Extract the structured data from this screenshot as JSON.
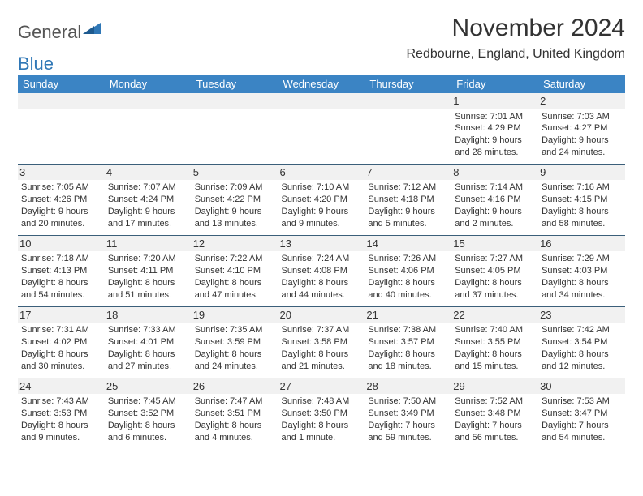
{
  "logo": {
    "part1": "General",
    "part2": "Blue"
  },
  "title": "November 2024",
  "location": "Redbourne, England, United Kingdom",
  "headerBg": "#3b84c4",
  "borderColor": "#3b5f7a",
  "dayNames": [
    "Sunday",
    "Monday",
    "Tuesday",
    "Wednesday",
    "Thursday",
    "Friday",
    "Saturday"
  ],
  "weeks": [
    [
      null,
      null,
      null,
      null,
      null,
      {
        "n": "1",
        "sunrise": "7:01 AM",
        "sunset": "4:29 PM",
        "daylight": "9 hours and 28 minutes."
      },
      {
        "n": "2",
        "sunrise": "7:03 AM",
        "sunset": "4:27 PM",
        "daylight": "9 hours and 24 minutes."
      }
    ],
    [
      {
        "n": "3",
        "sunrise": "7:05 AM",
        "sunset": "4:26 PM",
        "daylight": "9 hours and 20 minutes."
      },
      {
        "n": "4",
        "sunrise": "7:07 AM",
        "sunset": "4:24 PM",
        "daylight": "9 hours and 17 minutes."
      },
      {
        "n": "5",
        "sunrise": "7:09 AM",
        "sunset": "4:22 PM",
        "daylight": "9 hours and 13 minutes."
      },
      {
        "n": "6",
        "sunrise": "7:10 AM",
        "sunset": "4:20 PM",
        "daylight": "9 hours and 9 minutes."
      },
      {
        "n": "7",
        "sunrise": "7:12 AM",
        "sunset": "4:18 PM",
        "daylight": "9 hours and 5 minutes."
      },
      {
        "n": "8",
        "sunrise": "7:14 AM",
        "sunset": "4:16 PM",
        "daylight": "9 hours and 2 minutes."
      },
      {
        "n": "9",
        "sunrise": "7:16 AM",
        "sunset": "4:15 PM",
        "daylight": "8 hours and 58 minutes."
      }
    ],
    [
      {
        "n": "10",
        "sunrise": "7:18 AM",
        "sunset": "4:13 PM",
        "daylight": "8 hours and 54 minutes."
      },
      {
        "n": "11",
        "sunrise": "7:20 AM",
        "sunset": "4:11 PM",
        "daylight": "8 hours and 51 minutes."
      },
      {
        "n": "12",
        "sunrise": "7:22 AM",
        "sunset": "4:10 PM",
        "daylight": "8 hours and 47 minutes."
      },
      {
        "n": "13",
        "sunrise": "7:24 AM",
        "sunset": "4:08 PM",
        "daylight": "8 hours and 44 minutes."
      },
      {
        "n": "14",
        "sunrise": "7:26 AM",
        "sunset": "4:06 PM",
        "daylight": "8 hours and 40 minutes."
      },
      {
        "n": "15",
        "sunrise": "7:27 AM",
        "sunset": "4:05 PM",
        "daylight": "8 hours and 37 minutes."
      },
      {
        "n": "16",
        "sunrise": "7:29 AM",
        "sunset": "4:03 PM",
        "daylight": "8 hours and 34 minutes."
      }
    ],
    [
      {
        "n": "17",
        "sunrise": "7:31 AM",
        "sunset": "4:02 PM",
        "daylight": "8 hours and 30 minutes."
      },
      {
        "n": "18",
        "sunrise": "7:33 AM",
        "sunset": "4:01 PM",
        "daylight": "8 hours and 27 minutes."
      },
      {
        "n": "19",
        "sunrise": "7:35 AM",
        "sunset": "3:59 PM",
        "daylight": "8 hours and 24 minutes."
      },
      {
        "n": "20",
        "sunrise": "7:37 AM",
        "sunset": "3:58 PM",
        "daylight": "8 hours and 21 minutes."
      },
      {
        "n": "21",
        "sunrise": "7:38 AM",
        "sunset": "3:57 PM",
        "daylight": "8 hours and 18 minutes."
      },
      {
        "n": "22",
        "sunrise": "7:40 AM",
        "sunset": "3:55 PM",
        "daylight": "8 hours and 15 minutes."
      },
      {
        "n": "23",
        "sunrise": "7:42 AM",
        "sunset": "3:54 PM",
        "daylight": "8 hours and 12 minutes."
      }
    ],
    [
      {
        "n": "24",
        "sunrise": "7:43 AM",
        "sunset": "3:53 PM",
        "daylight": "8 hours and 9 minutes."
      },
      {
        "n": "25",
        "sunrise": "7:45 AM",
        "sunset": "3:52 PM",
        "daylight": "8 hours and 6 minutes."
      },
      {
        "n": "26",
        "sunrise": "7:47 AM",
        "sunset": "3:51 PM",
        "daylight": "8 hours and 4 minutes."
      },
      {
        "n": "27",
        "sunrise": "7:48 AM",
        "sunset": "3:50 PM",
        "daylight": "8 hours and 1 minute."
      },
      {
        "n": "28",
        "sunrise": "7:50 AM",
        "sunset": "3:49 PM",
        "daylight": "7 hours and 59 minutes."
      },
      {
        "n": "29",
        "sunrise": "7:52 AM",
        "sunset": "3:48 PM",
        "daylight": "7 hours and 56 minutes."
      },
      {
        "n": "30",
        "sunrise": "7:53 AM",
        "sunset": "3:47 PM",
        "daylight": "7 hours and 54 minutes."
      }
    ]
  ]
}
